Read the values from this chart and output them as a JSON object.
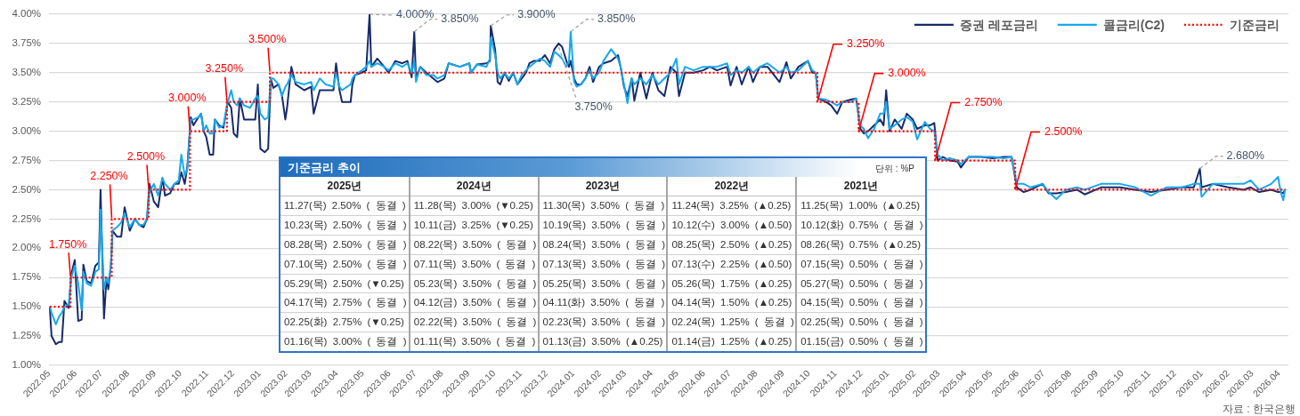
{
  "chart_data": {
    "type": "line",
    "x": [
      "2022-05-02",
      "2022-05-04",
      "2022-05-09",
      "2022-05-13",
      "2022-05-16",
      "2022-05-19",
      "2022-05-24",
      "2022-05-27",
      "2022-05-31",
      "2022-06-04",
      "2022-06-08",
      "2022-06-10",
      "2022-06-14",
      "2022-06-19",
      "2022-06-24",
      "2022-06-28",
      "2022-06-30",
      "2022-07-04",
      "2022-07-07",
      "2022-07-09",
      "2022-07-12",
      "2022-07-14",
      "2022-07-19",
      "2022-07-24",
      "2022-07-28",
      "2022-08-03",
      "2022-08-09",
      "2022-08-14",
      "2022-08-19",
      "2022-08-23",
      "2022-08-26",
      "2022-08-31",
      "2022-09-05",
      "2022-09-10",
      "2022-09-13",
      "2022-09-19",
      "2022-09-24",
      "2022-09-29",
      "2022-10-02",
      "2022-10-06",
      "2022-10-09",
      "2022-10-13",
      "2022-10-16",
      "2022-10-22",
      "2022-10-25",
      "2022-10-28",
      "2022-10-31",
      "2022-11-04",
      "2022-11-08",
      "2022-11-10",
      "2022-11-15",
      "2022-11-20",
      "2022-11-25",
      "2022-11-29",
      "2022-12-02",
      "2022-12-06",
      "2022-12-09",
      "2022-12-14",
      "2022-12-21",
      "2022-12-27",
      "2022-12-30",
      "2023-01-02",
      "2023-01-07",
      "2023-01-11",
      "2023-01-14",
      "2023-01-17",
      "2023-01-23",
      "2023-01-27",
      "2023-01-31",
      "2023-02-02",
      "2023-02-07",
      "2023-02-12",
      "2023-02-22",
      "2023-03-02",
      "2023-03-05",
      "2023-03-12",
      "2023-03-19",
      "2023-03-28",
      "2023-03-31",
      "2023-04-04",
      "2023-04-07",
      "2023-04-17",
      "2023-04-19",
      "2023-04-22",
      "2023-04-30",
      "2023-05-05",
      "2023-05-09",
      "2023-05-11",
      "2023-05-18",
      "2023-05-26",
      "2023-05-31",
      "2023-06-08",
      "2023-06-16",
      "2023-06-22",
      "2023-06-27",
      "2023-06-30",
      "2023-07-02",
      "2023-07-07",
      "2023-07-14",
      "2023-07-22",
      "2023-07-27",
      "2023-08-04",
      "2023-08-09",
      "2023-08-22",
      "2023-09-02",
      "2023-09-04",
      "2023-09-11",
      "2023-09-22",
      "2023-09-26",
      "2023-09-27",
      "2023-10-02",
      "2023-10-05",
      "2023-10-08",
      "2023-10-13",
      "2023-10-18",
      "2023-10-23",
      "2023-10-28",
      "2023-11-02",
      "2023-11-07",
      "2023-11-11",
      "2023-11-16",
      "2023-11-23",
      "2023-11-29",
      "2023-12-05",
      "2023-12-10",
      "2023-12-15",
      "2023-12-19",
      "2023-12-24",
      "2023-12-27",
      "2023-12-29",
      "2024-01-02",
      "2024-01-05",
      "2024-01-10",
      "2024-01-15",
      "2024-01-20",
      "2024-01-24",
      "2024-01-31",
      "2024-02-05",
      "2024-02-14",
      "2024-02-22",
      "2024-02-25",
      "2024-02-29",
      "2024-03-04",
      "2024-03-09",
      "2024-03-12",
      "2024-03-19",
      "2024-03-26",
      "2024-04-02",
      "2024-04-09",
      "2024-04-16",
      "2024-04-23",
      "2024-04-30",
      "2024-05-03",
      "2024-05-10",
      "2024-05-20",
      "2024-05-31",
      "2024-06-08",
      "2024-06-16",
      "2024-06-28",
      "2024-07-02",
      "2024-07-09",
      "2024-07-15",
      "2024-07-23",
      "2024-07-28",
      "2024-08-05",
      "2024-08-14",
      "2024-08-28",
      "2024-09-05",
      "2024-09-10",
      "2024-09-19",
      "2024-09-30",
      "2024-10-05",
      "2024-10-09",
      "2024-10-12",
      "2024-10-21",
      "2024-10-27",
      "2024-11-03",
      "2024-11-09",
      "2024-11-19",
      "2024-11-25",
      "2024-11-30",
      "2024-12-04",
      "2024-12-09",
      "2024-12-16",
      "2024-12-23",
      "2024-12-27",
      "2024-12-30",
      "2025-01-03",
      "2025-01-09",
      "2025-01-17",
      "2025-01-23",
      "2025-01-30",
      "2025-02-04",
      "2025-02-13",
      "2025-02-19",
      "2025-02-24",
      "2025-02-28",
      "2025-03-06",
      "2025-03-14",
      "2025-03-23",
      "2025-03-27",
      "2025-04-05",
      "2025-04-19",
      "2025-05-03",
      "2025-05-16",
      "2025-05-25",
      "2025-05-31",
      "2025-06-08",
      "2025-06-16",
      "2025-06-30",
      "2025-07-07",
      "2025-07-16",
      "2025-07-27",
      "2025-08-09",
      "2025-08-18",
      "2025-09-06",
      "2025-09-28",
      "2025-10-16",
      "2025-11-03",
      "2025-11-21",
      "2025-12-09",
      "2025-12-23",
      "2025-12-30",
      "2026-01-01",
      "2026-01-14",
      "2026-02-01",
      "2026-02-19",
      "2026-02-27",
      "2026-03-09",
      "2026-03-23",
      "2026-03-31",
      "2026-04-03",
      "2026-04-06",
      "2026-04-08"
    ],
    "series": [
      {
        "name": "증권 레포금리",
        "color": "#172b6b",
        "values": [
          1.49,
          1.25,
          1.18,
          1.2,
          1.2,
          1.55,
          1.49,
          1.78,
          1.9,
          1.38,
          1.39,
          1.86,
          1.72,
          1.7,
          1.85,
          1.88,
          2.5,
          1.4,
          1.75,
          1.65,
          1.85,
          2.15,
          2.1,
          2.1,
          2.35,
          2.15,
          2.25,
          2.2,
          2.18,
          2.25,
          2.55,
          2.4,
          2.35,
          2.6,
          2.45,
          2.47,
          2.55,
          2.55,
          2.65,
          2.55,
          2.7,
          3.12,
          3.05,
          3.12,
          3.15,
          3.0,
          2.95,
          2.8,
          2.8,
          3.1,
          3.05,
          3.03,
          3.25,
          3.2,
          2.98,
          2.95,
          3.28,
          3.1,
          3.1,
          3.1,
          3.4,
          2.85,
          2.82,
          2.85,
          3.45,
          3.37,
          3.4,
          3.31,
          3.1,
          3.2,
          3.55,
          3.4,
          3.35,
          3.38,
          3.15,
          3.35,
          3.35,
          3.35,
          3.58,
          3.35,
          3.25,
          3.25,
          3.4,
          3.48,
          3.5,
          3.52,
          4.0,
          3.55,
          3.62,
          3.55,
          3.5,
          3.6,
          3.58,
          3.6,
          3.46,
          3.85,
          3.45,
          3.55,
          3.5,
          3.45,
          3.42,
          3.45,
          3.58,
          3.55,
          3.58,
          3.5,
          3.57,
          3.58,
          3.6,
          3.9,
          3.7,
          3.42,
          3.4,
          3.5,
          3.43,
          3.5,
          3.4,
          3.45,
          3.5,
          3.58,
          3.6,
          3.6,
          3.65,
          3.58,
          3.7,
          3.75,
          3.72,
          3.6,
          3.55,
          3.6,
          3.45,
          3.4,
          3.4,
          3.45,
          3.55,
          3.42,
          3.55,
          3.58,
          3.6,
          3.65,
          3.55,
          3.38,
          3.3,
          3.45,
          3.26,
          3.5,
          3.28,
          3.5,
          3.35,
          3.3,
          3.55,
          3.5,
          3.3,
          3.5,
          3.5,
          3.52,
          3.55,
          3.52,
          3.55,
          3.39,
          3.55,
          3.4,
          3.55,
          3.42,
          3.55,
          3.55,
          3.42,
          3.59,
          3.45,
          3.55,
          3.6,
          3.5,
          3.5,
          3.28,
          3.25,
          3.22,
          3.15,
          3.25,
          3.27,
          3.28,
          3.02,
          2.98,
          3.0,
          3.05,
          3.1,
          3.05,
          3.35,
          3.0,
          3.1,
          3.02,
          3.15,
          3.1,
          3.02,
          3.05,
          3.05,
          3.07,
          2.75,
          2.78,
          2.75,
          2.74,
          2.69,
          2.78,
          2.78,
          2.77,
          2.78,
          2.78,
          2.52,
          2.48,
          2.5,
          2.55,
          2.47,
          2.47,
          2.48,
          2.5,
          2.46,
          2.52,
          2.52,
          2.5,
          2.48,
          2.5,
          2.52,
          2.52,
          2.68,
          2.52,
          2.55,
          2.52,
          2.5,
          2.52,
          2.48,
          2.5,
          2.48,
          2.48,
          2.47,
          2.5
        ]
      },
      {
        "name": "콜금리(C2)",
        "color": "#16a9ec",
        "values": [
          1.5,
          1.45,
          1.35,
          1.42,
          1.45,
          1.5,
          1.52,
          1.75,
          1.85,
          1.7,
          1.47,
          1.8,
          1.7,
          1.68,
          1.8,
          1.82,
          2.33,
          1.65,
          1.75,
          1.7,
          1.85,
          2.15,
          2.18,
          2.22,
          2.3,
          2.18,
          2.25,
          2.2,
          2.2,
          2.25,
          2.48,
          2.55,
          2.45,
          2.6,
          2.55,
          2.5,
          2.55,
          2.58,
          2.8,
          2.62,
          2.68,
          3.1,
          3.1,
          3.12,
          3.15,
          3.0,
          3.05,
          2.98,
          2.98,
          3.1,
          3.03,
          3.05,
          3.25,
          3.35,
          3.25,
          3.22,
          3.28,
          3.22,
          3.2,
          3.28,
          3.3,
          3.15,
          3.1,
          3.12,
          3.45,
          3.45,
          3.4,
          3.3,
          3.38,
          3.4,
          3.48,
          3.42,
          3.4,
          3.42,
          3.35,
          3.45,
          3.4,
          3.38,
          3.5,
          3.38,
          3.35,
          3.4,
          3.45,
          3.48,
          3.52,
          3.55,
          3.6,
          3.55,
          3.58,
          3.55,
          3.52,
          3.58,
          3.55,
          3.58,
          3.5,
          3.6,
          3.42,
          3.55,
          3.48,
          3.48,
          3.45,
          3.48,
          3.58,
          3.55,
          3.58,
          3.5,
          3.57,
          3.55,
          3.62,
          3.8,
          3.65,
          3.5,
          3.45,
          3.5,
          3.45,
          3.5,
          3.4,
          3.48,
          3.52,
          3.55,
          3.58,
          3.62,
          3.6,
          3.55,
          3.68,
          3.65,
          3.62,
          3.55,
          3.6,
          3.85,
          3.42,
          3.38,
          3.4,
          3.45,
          3.52,
          3.45,
          3.5,
          3.6,
          3.7,
          3.62,
          3.55,
          3.4,
          3.24,
          3.45,
          3.4,
          3.45,
          3.4,
          3.48,
          3.4,
          3.45,
          3.5,
          3.62,
          3.4,
          3.55,
          3.52,
          3.55,
          3.55,
          3.55,
          3.58,
          3.48,
          3.52,
          3.5,
          3.55,
          3.5,
          3.55,
          3.58,
          3.5,
          3.55,
          3.5,
          3.52,
          3.6,
          3.52,
          3.5,
          3.28,
          3.27,
          3.25,
          3.22,
          3.25,
          3.25,
          3.28,
          3.05,
          3.02,
          2.94,
          3.02,
          3.15,
          3.15,
          3.25,
          3.02,
          3.05,
          3.1,
          3.12,
          3.08,
          2.93,
          3.08,
          3.02,
          3.0,
          2.8,
          2.75,
          2.77,
          2.75,
          2.72,
          2.78,
          2.78,
          2.78,
          2.77,
          2.78,
          2.55,
          2.55,
          2.52,
          2.55,
          2.48,
          2.42,
          2.5,
          2.52,
          2.5,
          2.55,
          2.55,
          2.52,
          2.45,
          2.52,
          2.52,
          2.55,
          2.55,
          2.44,
          2.55,
          2.55,
          2.55,
          2.58,
          2.5,
          2.55,
          2.61,
          2.48,
          2.41,
          2.5
        ]
      },
      {
        "name": "기준금리",
        "color": "#ff0000",
        "type": "step",
        "line_style": "dotted",
        "x": [
          "2022-05-02",
          "2022-05-26",
          "2022-07-13",
          "2022-08-25",
          "2022-10-12",
          "2022-11-24",
          "2023-01-13",
          "2024-10-11",
          "2024-11-28",
          "2025-02-25",
          "2025-05-29",
          "2026-04-08"
        ],
        "values": [
          1.5,
          1.75,
          2.25,
          2.5,
          3.0,
          3.25,
          3.5,
          3.25,
          3.0,
          2.75,
          2.5,
          2.5
        ]
      }
    ],
    "xlim": [
      "2022-05-01",
      "2026-04-12"
    ],
    "xticks": [
      {
        "value": "2022-05-01",
        "label": "2022.05"
      },
      {
        "value": "2022-06-01",
        "label": "2022.06"
      },
      {
        "value": "2022-07-01",
        "label": "2022.07"
      },
      {
        "value": "2022-08-01",
        "label": "2022.08"
      },
      {
        "value": "2022-09-01",
        "label": "2022.09"
      },
      {
        "value": "2022-10-01",
        "label": "2022.10"
      },
      {
        "value": "2022-11-01",
        "label": "2022.11"
      },
      {
        "value": "2022-12-01",
        "label": "2022.12"
      },
      {
        "value": "2023-01-01",
        "label": "2023.01"
      },
      {
        "value": "2023-02-01",
        "label": "2023.02"
      },
      {
        "value": "2023-03-01",
        "label": "2023.03"
      },
      {
        "value": "2023-04-01",
        "label": "2023.04"
      },
      {
        "value": "2023-05-01",
        "label": "2023.05"
      },
      {
        "value": "2023-06-01",
        "label": "2023.06"
      },
      {
        "value": "2023-07-01",
        "label": "2023.07"
      },
      {
        "value": "2023-08-01",
        "label": "2023.08"
      },
      {
        "value": "2023-09-01",
        "label": "2023.09"
      },
      {
        "value": "2023-10-01",
        "label": "2023.10"
      },
      {
        "value": "2023-11-01",
        "label": "2023.11"
      },
      {
        "value": "2023-12-01",
        "label": "2023.12"
      },
      {
        "value": "2024-01-01",
        "label": "2024.01"
      },
      {
        "value": "2024-02-01",
        "label": "2024.02"
      },
      {
        "value": "2024-03-01",
        "label": "2024.03"
      },
      {
        "value": "2024-04-01",
        "label": "2024.04"
      },
      {
        "value": "2024-05-01",
        "label": "2024.05"
      },
      {
        "value": "2024-06-01",
        "label": "2024.06"
      },
      {
        "value": "2024-07-01",
        "label": "2024.07"
      },
      {
        "value": "2024-08-01",
        "label": "2024.08"
      },
      {
        "value": "2024-09-01",
        "label": "2024.09"
      },
      {
        "value": "2024-10-01",
        "label": "2024.10"
      },
      {
        "value": "2024-11-01",
        "label": "2024.11"
      },
      {
        "value": "2024-12-01",
        "label": "2024.12"
      },
      {
        "value": "2025-01-01",
        "label": "2025.01"
      },
      {
        "value": "2025-02-01",
        "label": "2025.02"
      },
      {
        "value": "2025-03-01",
        "label": "2025.03"
      },
      {
        "value": "2025-04-01",
        "label": "2025.04"
      },
      {
        "value": "2025-05-01",
        "label": "2025.05"
      },
      {
        "value": "2025-06-01",
        "label": "2025.06"
      },
      {
        "value": "2025-07-01",
        "label": "2025.07"
      },
      {
        "value": "2025-08-01",
        "label": "2025.08"
      },
      {
        "value": "2025-09-01",
        "label": "2025.09"
      },
      {
        "value": "2025-10-01",
        "label": "2025.10"
      },
      {
        "value": "2025-11-01",
        "label": "2025.11"
      },
      {
        "value": "2025-12-01",
        "label": "2025.12"
      },
      {
        "value": "2026-01-01",
        "label": "2026.01"
      },
      {
        "value": "2026-02-01",
        "label": "2026.02"
      },
      {
        "value": "2026-03-01",
        "label": "2026.03"
      },
      {
        "value": "2026-04-01",
        "label": "2026.04"
      }
    ],
    "ylim": [
      1,
      4
    ],
    "yticks": [
      {
        "value": 1,
        "label": "1.00%"
      },
      {
        "value": 1.25,
        "label": "1.25%"
      },
      {
        "value": 1.5,
        "label": "1.50%"
      },
      {
        "value": 1.75,
        "label": "1.75%"
      },
      {
        "value": 2,
        "label": "2.00%"
      },
      {
        "value": 2.25,
        "label": "2.25%"
      },
      {
        "value": 2.5,
        "label": "2.50%"
      },
      {
        "value": 2.75,
        "label": "2.75%"
      },
      {
        "value": 3,
        "label": "3.00%"
      },
      {
        "value": 3.25,
        "label": "3.25%"
      },
      {
        "value": 3.5,
        "label": "3.50%"
      },
      {
        "value": 3.75,
        "label": "3.75%"
      },
      {
        "value": 4,
        "label": "4.00%"
      }
    ],
    "grid": "y",
    "legend": "top right",
    "marker": "none",
    "annotations": [
      "기준금리 추이",
      "단위 : %P",
      "2025년",
      "2024년",
      "2023년",
      "2022년",
      "2021년",
      "11.27(목) 2.50% ( 동결 )",
      "11.28(목) 3.00% (▼0.25)",
      "11.30(목) 3.50% ( 동결 )",
      "11.24(목) 3.25% (▲0.25)",
      "11.25(목) 1.00% (▲0.25)",
      "10.23(목) 2.50% ( 동결 )",
      "10.11(금) 3.25% (▼0.25)",
      "10.19(목) 3.50% ( 동결 )",
      "10.12(수) 3.00% (▲0.50)",
      "10.12(화) 0.75% ( 동결 )",
      "08.28(목) 2.50% ( 동결 )",
      "08.22(목) 3.50% ( 동결 )",
      "08.24(목) 3.50% ( 동결 )",
      "08.25(목) 2.50% (▲0.25)",
      "08.26(목) 0.75% (▲0.25)",
      "07.10(목) 2.50% ( 동결 )",
      "07.11(목) 3.50% ( 동결 )",
      "07.13(목) 3.50% ( 동결 )",
      "07.13(수) 2.25% (▲0.50)",
      "07.15(목) 0.50% ( 동결 )",
      "05.29(목) 2.50% (▼0.25)",
      "05.23(목) 3.50% ( 동결 )",
      "05.25(목) 3.50% ( 동결 )",
      "05.26(목) 1.75% (▲0.25)",
      "05.27(목) 0.50% ( 동결 )",
      "04.17(목) 2.75% ( 동결 )",
      "04.12(금) 3.50% ( 동결 )",
      "04.11(화) 3.50% ( 동결 )",
      "04.14(목) 1.50% (▲0.25)",
      "04.15(목) 0.50% ( 동결 )",
      "02.25(화) 2.75% (▼0.25)",
      "02.22(목) 3.50% ( 동결 )",
      "02.23(목) 3.50% ( 동결 )",
      "02.24(목) 1.25% ( 동결 )",
      "02.25(목) 0.50% ( 동결 )",
      "01.16(목) 3.00% ( 동결 )",
      "01.11(목) 3.50% ( 동결 )",
      "01.13(금) 3.50% (▲0.25)",
      "01.14(금) 1.25% (▲0.25)",
      "01.15(금) 0.50% ( 동결 )",
      "자료 : 한국은행",
      {
        "text": "1.750%",
        "x": "2022-05-26",
        "y": 1.75
      },
      {
        "text": "2.250%",
        "x": "2022-07-13",
        "y": 2.25
      },
      {
        "text": "2.500%",
        "x": "2022-08-25",
        "y": 2.5
      },
      {
        "text": "3.000%",
        "x": "2022-10-12",
        "y": 3.0
      },
      {
        "text": "3.250%",
        "x": "2022-11-24",
        "y": 3.25
      },
      {
        "text": "3.500%",
        "x": "2023-01-13",
        "y": 3.5
      },
      {
        "text": "4.000%",
        "x": "2023-05-09",
        "y": 4.0
      },
      {
        "text": "3.850%",
        "x": "2023-06-30",
        "y": 3.85
      },
      {
        "text": "3.900%",
        "x": "2023-09-27",
        "y": 3.9
      },
      {
        "text": "3.850%",
        "x": "2023-12-29",
        "y": 3.85
      },
      {
        "text": "3.750%",
        "x": "2023-12-15",
        "y": 3.75
      },
      {
        "text": "3.250%",
        "x": "2024-10-11",
        "y": 3.25
      },
      {
        "text": "3.000%",
        "x": "2024-11-28",
        "y": 3.0
      },
      {
        "text": "2.750%",
        "x": "2025-02-25",
        "y": 2.75
      },
      {
        "text": "2.500%",
        "x": "2025-05-29",
        "y": 2.5
      },
      {
        "text": "2.680%",
        "x": "2025-12-30",
        "y": 2.68
      }
    ]
  }
}
